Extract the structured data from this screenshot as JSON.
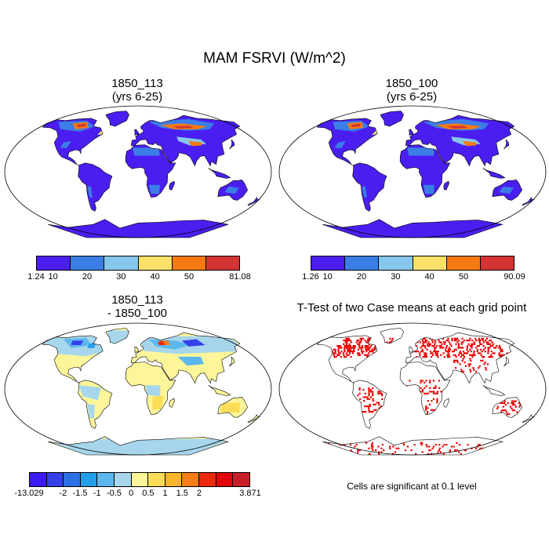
{
  "figure_title": "MAM FSRVI (W/m^2)",
  "panels": [
    {
      "id": "case1",
      "title_line1": "1850_113",
      "title_line2": "(yrs 6-25)",
      "colorbar": {
        "colors": [
          "#4a1ef0",
          "#3b7ee6",
          "#86c8eb",
          "#fae16a",
          "#f67a14",
          "#d23434"
        ],
        "min_label": "1.24",
        "max_label": "81.08",
        "ticks": [
          "10",
          "20",
          "30",
          "40",
          "50"
        ]
      }
    },
    {
      "id": "case2",
      "title_line1": "1850_100",
      "title_line2": "(yrs 6-25)",
      "colorbar": {
        "colors": [
          "#4a1ef0",
          "#3b7ee6",
          "#86c8eb",
          "#fae16a",
          "#f67a14",
          "#d23434"
        ],
        "min_label": "1.26",
        "max_label": "90.09",
        "ticks": [
          "10",
          "20",
          "30",
          "40",
          "50"
        ]
      }
    },
    {
      "id": "difference",
      "title_line1": "1850_113",
      "title_line2": "- 1850_100",
      "colorbar": {
        "colors": [
          "#3a1cf2",
          "#3440e8",
          "#2e6fe4",
          "#239ee8",
          "#5cb8ec",
          "#a7d6ec",
          "#fdf59a",
          "#fddc57",
          "#fab42a",
          "#f67d17",
          "#ec2a0f",
          "#e2080a",
          "#c81f28"
        ],
        "min_label": "-13.029",
        "max_label": "3.871",
        "ticks": [
          "-2",
          "-1.5",
          "-1",
          "-0.5",
          "0",
          "0.5",
          "1",
          "1.5",
          "2"
        ]
      }
    },
    {
      "id": "ttest",
      "title_line1": "T-Test of two Case means at each grid point",
      "footnote": "Cells are significant at 0.1 level",
      "significance_color": "#ee0000"
    }
  ]
}
